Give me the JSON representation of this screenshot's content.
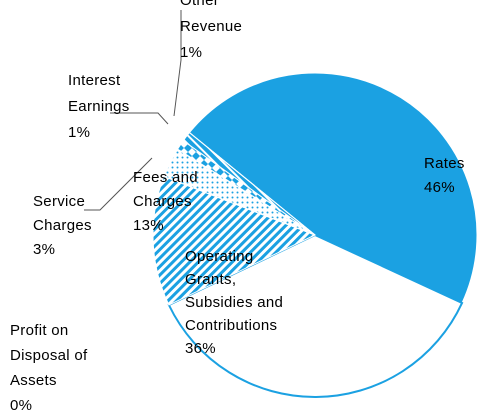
{
  "chart_data": {
    "type": "pie",
    "categories": [
      "Rates",
      "Operating Grants, Subsidies and Contributions",
      "Fees and Charges",
      "Service Charges",
      "Interest Earnings",
      "Other Revenue",
      "Profit on Disposal of Assets"
    ],
    "values": [
      46,
      36,
      13,
      3,
      1,
      1,
      0
    ],
    "value_labels": [
      "46%",
      "36%",
      "13%",
      "3%",
      "1%",
      "1%",
      "0%"
    ],
    "colors": [
      "#1ba1e2",
      "#ffffff",
      "#1ba1e2",
      "#1ba1e2",
      "#1ba1e2",
      "#1ba1e2",
      "#1ba1e2"
    ]
  }
}
